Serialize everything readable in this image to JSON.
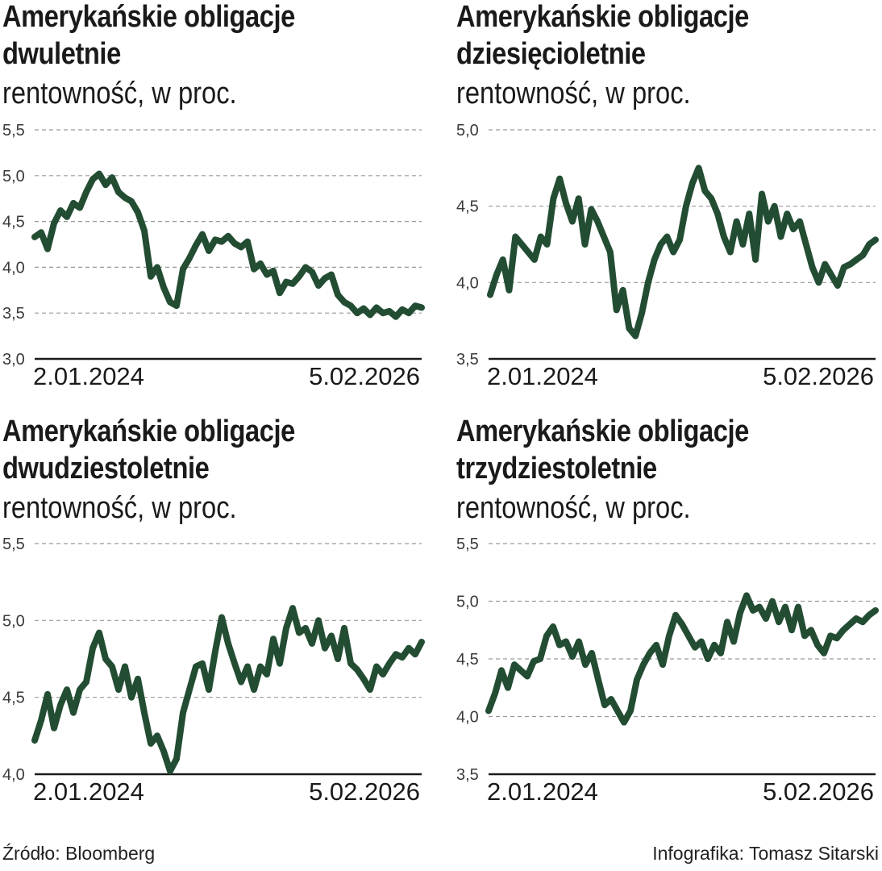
{
  "colors": {
    "line": "#234d33",
    "grid": "#9a9a9a",
    "axis": "#1a1a1a"
  },
  "panels": [
    {
      "title1": "Amerykańskie obligacje",
      "title2": "dwuletnie",
      "subtitle": "rentowność, w proc."
    },
    {
      "title1": "Amerykańskie obligacje",
      "title2": "dziesięcioletnie",
      "subtitle": "rentowność, w proc."
    },
    {
      "title1": "Amerykańskie obligacje",
      "title2": "dwudziestoletnie",
      "subtitle": "rentowność, w proc."
    },
    {
      "title1": "Amerykańskie obligacje",
      "title2": "trzydziestoletnie",
      "subtitle": "rentowność, w proc."
    }
  ],
  "footer": {
    "source": "Źródło: Bloomberg",
    "credit": "Infografika: Tomasz Sitarski"
  },
  "chart_data": [
    {
      "type": "line",
      "title": "Amerykańskie obligacje dwuletnie",
      "ylabel": "rentowność, w proc.",
      "ylim": [
        3.0,
        5.5
      ],
      "yticks": [
        "5,5",
        "5,0",
        "4,5",
        "4,0",
        "3,5",
        "3,0"
      ],
      "x_start": "2.01.2024",
      "x_end": "5.02.2026",
      "grid": true,
      "series": [
        {
          "values": [
            4.33,
            4.38,
            4.2,
            4.48,
            4.62,
            4.55,
            4.7,
            4.65,
            4.82,
            4.96,
            5.02,
            4.9,
            4.98,
            4.82,
            4.76,
            4.72,
            4.6,
            4.4,
            3.9,
            4.0,
            3.78,
            3.62,
            3.58,
            3.98,
            4.1,
            4.24,
            4.36,
            4.18,
            4.3,
            4.28,
            4.34,
            4.26,
            4.22,
            4.28,
            3.98,
            4.04,
            3.92,
            3.96,
            3.72,
            3.84,
            3.82,
            3.9,
            4.0,
            3.95,
            3.8,
            3.88,
            3.92,
            3.7,
            3.62,
            3.58,
            3.5,
            3.55,
            3.48,
            3.56,
            3.5,
            3.52,
            3.46,
            3.54,
            3.5,
            3.58,
            3.56
          ]
        }
      ]
    },
    {
      "type": "line",
      "title": "Amerykańskie obligacje dziesięcioletnie",
      "ylabel": "rentowność, w proc.",
      "ylim": [
        3.5,
        5.0
      ],
      "yticks": [
        "5,0",
        "4,5",
        "4,0",
        "3,5"
      ],
      "x_start": "2.01.2024",
      "x_end": "5.02.2026",
      "grid": true,
      "series": [
        {
          "values": [
            3.92,
            4.05,
            4.15,
            3.95,
            4.3,
            4.25,
            4.2,
            4.15,
            4.3,
            4.25,
            4.55,
            4.68,
            4.52,
            4.4,
            4.55,
            4.25,
            4.48,
            4.4,
            4.3,
            4.2,
            3.82,
            3.95,
            3.7,
            3.65,
            3.8,
            4.0,
            4.15,
            4.25,
            4.3,
            4.2,
            4.28,
            4.5,
            4.65,
            4.75,
            4.6,
            4.55,
            4.45,
            4.3,
            4.2,
            4.4,
            4.25,
            4.45,
            4.15,
            4.58,
            4.4,
            4.5,
            4.3,
            4.45,
            4.35,
            4.4,
            4.25,
            4.1,
            4.0,
            4.12,
            4.05,
            3.98,
            4.1,
            4.12,
            4.15,
            4.18,
            4.25,
            4.28
          ]
        }
      ]
    },
    {
      "type": "line",
      "title": "Amerykańskie obligacje dwudziestoletnie",
      "ylabel": "rentowność, w proc.",
      "ylim": [
        4.0,
        5.5
      ],
      "yticks": [
        "5,5",
        "5,0",
        "4,5",
        "4,0"
      ],
      "x_start": "2.01.2024",
      "x_end": "5.02.2026",
      "grid": true,
      "series": [
        {
          "values": [
            4.22,
            4.35,
            4.52,
            4.3,
            4.45,
            4.55,
            4.4,
            4.55,
            4.6,
            4.82,
            4.92,
            4.75,
            4.7,
            4.55,
            4.7,
            4.5,
            4.62,
            4.4,
            4.2,
            4.25,
            4.15,
            4.02,
            4.1,
            4.4,
            4.55,
            4.7,
            4.72,
            4.55,
            4.8,
            5.02,
            4.85,
            4.72,
            4.6,
            4.7,
            4.55,
            4.7,
            4.65,
            4.88,
            4.72,
            4.95,
            5.08,
            4.92,
            4.95,
            4.85,
            5.0,
            4.82,
            4.9,
            4.75,
            4.95,
            4.72,
            4.68,
            4.62,
            4.55,
            4.7,
            4.65,
            4.72,
            4.78,
            4.76,
            4.82,
            4.78,
            4.86
          ]
        }
      ]
    },
    {
      "type": "line",
      "title": "Amerykańskie obligacje trzydziestoletnie",
      "ylabel": "rentowność, w proc.",
      "ylim": [
        3.5,
        5.5
      ],
      "yticks": [
        "5,5",
        "5,0",
        "4,5",
        "4,0",
        "3,5"
      ],
      "x_start": "2.01.2024",
      "x_end": "5.02.2026",
      "grid": true,
      "series": [
        {
          "values": [
            4.05,
            4.2,
            4.4,
            4.25,
            4.45,
            4.4,
            4.35,
            4.48,
            4.5,
            4.7,
            4.78,
            4.62,
            4.65,
            4.52,
            4.65,
            4.45,
            4.55,
            4.32,
            4.1,
            4.15,
            4.05,
            3.95,
            4.05,
            4.32,
            4.45,
            4.55,
            4.62,
            4.45,
            4.7,
            4.88,
            4.8,
            4.7,
            4.6,
            4.65,
            4.5,
            4.62,
            4.55,
            4.82,
            4.65,
            4.9,
            5.05,
            4.92,
            4.95,
            4.85,
            5.0,
            4.82,
            4.95,
            4.75,
            4.95,
            4.7,
            4.75,
            4.62,
            4.55,
            4.7,
            4.68,
            4.75,
            4.8,
            4.85,
            4.82,
            4.88,
            4.92
          ]
        }
      ]
    }
  ]
}
